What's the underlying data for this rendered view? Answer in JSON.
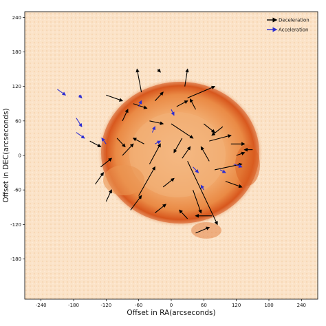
{
  "chart_data": {
    "type": "scatter",
    "title": "",
    "xlabel": "Offset in RA(arcseconds)",
    "ylabel": "Offset in DEC(arcseconds)",
    "xlim": [
      -270,
      270
    ],
    "ylim": [
      -250,
      250
    ],
    "xticks": [
      -240,
      -180,
      -120,
      -60,
      0,
      60,
      120,
      180,
      240
    ],
    "yticks": [
      -180,
      -120,
      -60,
      0,
      60,
      120,
      180,
      240
    ],
    "x_reversed": false,
    "grid": false,
    "legend_position": "top-right",
    "background": "synchrotron shell image, orange colormap",
    "colors": {
      "image_background": "#fbe3c8",
      "shell": "#e2702c",
      "deceleration": "#000000",
      "acceleration": "#2f2fd0",
      "frame": "#000000"
    },
    "series": [
      {
        "name": "Deceleration",
        "color": "#000000",
        "vectors": [
          {
            "x": -120,
            "y": 105,
            "dx": 30,
            "dy": -10
          },
          {
            "x": -55,
            "y": 110,
            "dx": -8,
            "dy": 40
          },
          {
            "x": 25,
            "y": 120,
            "dx": 5,
            "dy": 30
          },
          {
            "x": 30,
            "y": 100,
            "dx": 50,
            "dy": 20
          },
          {
            "x": -70,
            "y": 90,
            "dx": 25,
            "dy": -8
          },
          {
            "x": -30,
            "y": 95,
            "dx": 15,
            "dy": 15
          },
          {
            "x": 10,
            "y": 85,
            "dx": 20,
            "dy": 10
          },
          {
            "x": 45,
            "y": 80,
            "dx": -10,
            "dy": 18
          },
          {
            "x": -90,
            "y": 60,
            "dx": 10,
            "dy": 20
          },
          {
            "x": -40,
            "y": 60,
            "dx": 25,
            "dy": -5
          },
          {
            "x": 0,
            "y": 55,
            "dx": 40,
            "dy": -25
          },
          {
            "x": 60,
            "y": 55,
            "dx": 20,
            "dy": -15
          },
          {
            "x": 95,
            "y": 50,
            "dx": -20,
            "dy": -15
          },
          {
            "x": -150,
            "y": 25,
            "dx": 20,
            "dy": -10
          },
          {
            "x": -100,
            "y": 30,
            "dx": 15,
            "dy": -15
          },
          {
            "x": -50,
            "y": 20,
            "dx": -20,
            "dy": 10
          },
          {
            "x": 20,
            "y": 30,
            "dx": -15,
            "dy": -25
          },
          {
            "x": 70,
            "y": 25,
            "dx": 40,
            "dy": 10
          },
          {
            "x": 110,
            "y": 20,
            "dx": 25,
            "dy": 0
          },
          {
            "x": 120,
            "y": 0,
            "dx": 15,
            "dy": 5
          },
          {
            "x": -130,
            "y": -20,
            "dx": 20,
            "dy": 15
          },
          {
            "x": -90,
            "y": 0,
            "dx": 20,
            "dy": 20
          },
          {
            "x": -40,
            "y": -15,
            "dx": 20,
            "dy": 35
          },
          {
            "x": 20,
            "y": -5,
            "dx": 15,
            "dy": 20
          },
          {
            "x": 30,
            "y": -10,
            "dx": 55,
            "dy": -110
          },
          {
            "x": 70,
            "y": -10,
            "dx": -15,
            "dy": 25
          },
          {
            "x": 80,
            "y": -25,
            "dx": 50,
            "dy": 10
          },
          {
            "x": -140,
            "y": -50,
            "dx": 15,
            "dy": 20
          },
          {
            "x": -60,
            "y": -70,
            "dx": 30,
            "dy": 50
          },
          {
            "x": -15,
            "y": -55,
            "dx": 20,
            "dy": 15
          },
          {
            "x": 40,
            "y": -60,
            "dx": 15,
            "dy": -40
          },
          {
            "x": 100,
            "y": -45,
            "dx": 30,
            "dy": -10
          },
          {
            "x": -120,
            "y": -80,
            "dx": 10,
            "dy": 20
          },
          {
            "x": -75,
            "y": -95,
            "dx": 20,
            "dy": 25
          },
          {
            "x": -30,
            "y": -100,
            "dx": 20,
            "dy": 15
          },
          {
            "x": 75,
            "y": -105,
            "dx": -30,
            "dy": 0
          },
          {
            "x": 45,
            "y": -135,
            "dx": 25,
            "dy": 10
          },
          {
            "x": 30,
            "y": -110,
            "dx": -15,
            "dy": 15
          },
          {
            "x": -25,
            "y": 150,
            "dx": 5,
            "dy": -5
          },
          {
            "x": 150,
            "y": 10,
            "dx": -15,
            "dy": 0
          }
        ]
      },
      {
        "name": "Acceleration",
        "color": "#2f2fd0",
        "vectors": [
          {
            "x": -210,
            "y": 115,
            "dx": 15,
            "dy": -10
          },
          {
            "x": -170,
            "y": 105,
            "dx": 5,
            "dy": -5
          },
          {
            "x": -175,
            "y": 65,
            "dx": 10,
            "dy": -15
          },
          {
            "x": -175,
            "y": 40,
            "dx": 15,
            "dy": -10
          },
          {
            "x": -60,
            "y": 85,
            "dx": 5,
            "dy": 10
          },
          {
            "x": -35,
            "y": 40,
            "dx": 5,
            "dy": 10
          },
          {
            "x": -30,
            "y": 20,
            "dx": 10,
            "dy": 5
          },
          {
            "x": 0,
            "y": 80,
            "dx": 5,
            "dy": -10
          },
          {
            "x": 40,
            "y": -20,
            "dx": 10,
            "dy": -10
          },
          {
            "x": 90,
            "y": -25,
            "dx": 10,
            "dy": -5
          },
          {
            "x": 115,
            "y": -15,
            "dx": 15,
            "dy": -5
          },
          {
            "x": -120,
            "y": 20,
            "dx": -8,
            "dy": 10
          },
          {
            "x": 60,
            "y": -60,
            "dx": -5,
            "dy": 8
          }
        ]
      }
    ]
  }
}
